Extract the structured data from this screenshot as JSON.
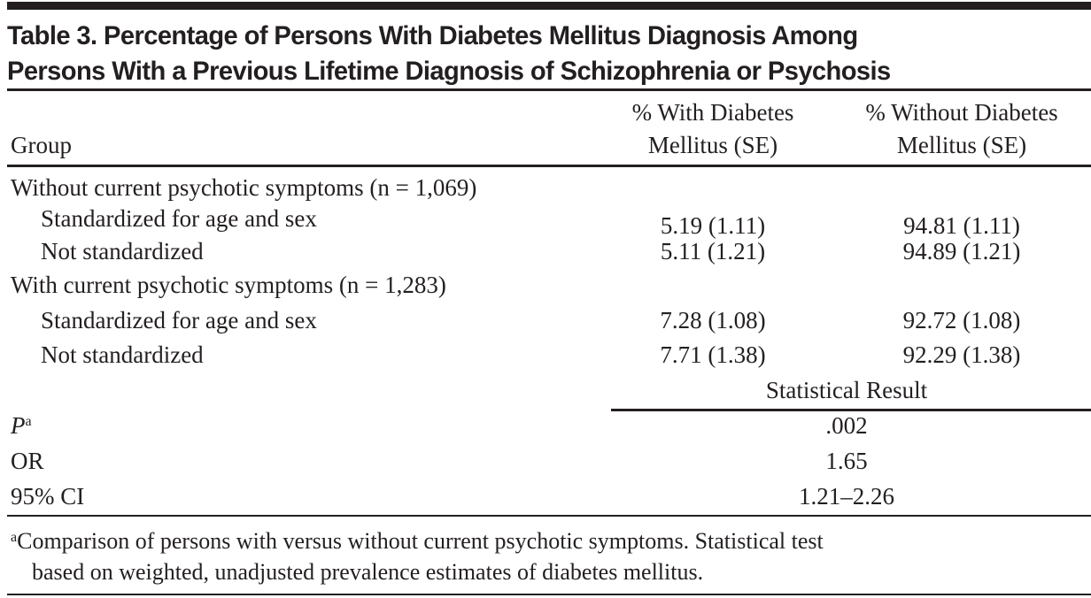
{
  "title": {
    "line1": "Table 3. Percentage of Persons With Diabetes Mellitus Diagnosis Among",
    "line2": "Persons With a Previous Lifetime Diagnosis of Schizophrenia or Psychosis"
  },
  "headers": {
    "group": "Group",
    "with_line1": "% With Diabetes",
    "with_line2": "Mellitus (SE)",
    "without_line1": "% Without Diabetes",
    "without_line2": "Mellitus (SE)"
  },
  "groups": [
    {
      "label": "Without current psychotic symptoms (n = 1,069)",
      "rows": [
        {
          "label": "Standardized for age and sex",
          "with": "5.19 (1.11)",
          "without": "94.81 (1.11)"
        },
        {
          "label": "Not standardized",
          "with": "5.11 (1.21)",
          "without": "94.89 (1.21)"
        }
      ]
    },
    {
      "label": "With current psychotic symptoms (n = 1,283)",
      "rows": [
        {
          "label": "Standardized for age and sex",
          "with": "7.28 (1.08)",
          "without": "92.72 (1.08)"
        },
        {
          "label": "Not standardized",
          "with": "7.71 (1.38)",
          "without": "92.29 (1.38)"
        }
      ]
    }
  ],
  "statistical": {
    "header": "Statistical Result",
    "rows": [
      {
        "label": "P",
        "sup": "a",
        "value": ".002"
      },
      {
        "label": "OR",
        "value": "1.65"
      },
      {
        "label": "95% CI",
        "value": "1.21–2.26"
      }
    ]
  },
  "footnote": {
    "marker": "a",
    "line1": "Comparison of persons with versus without current psychotic symptoms. Statistical test",
    "line2": "based on weighted, unadjusted prevalence estimates of diabetes mellitus."
  }
}
